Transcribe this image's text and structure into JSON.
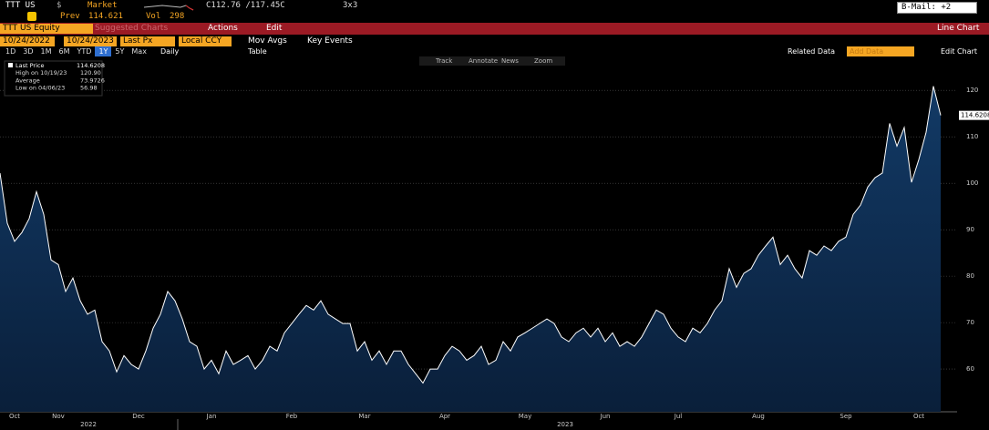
{
  "header": {
    "ticker": "TTT US",
    "currency": "$",
    "market": "Market",
    "quote": "C112.76 /117.45C",
    "size": "3x3",
    "mail": "B-Mail: +2",
    "prev_label": "Prev",
    "prev": "114.621",
    "vol_label": "Vol",
    "vol": "298"
  },
  "toolbar": {
    "security": "TTT US Equity",
    "suggested": "Suggested Charts",
    "actions": "Actions",
    "edit": "Edit",
    "chart_type": "Line Chart",
    "start": "10/24/2022",
    "end": "10/24/2023",
    "field": "Last Px",
    "ccy": "Local CCY",
    "mov_avgs": "Mov Avgs",
    "key_events": "Key Events",
    "periods": [
      "1D",
      "3D",
      "1M",
      "6M",
      "YTD",
      "1Y",
      "5Y",
      "Max"
    ],
    "frequency": "Daily",
    "table": "Table",
    "related": "Related Data",
    "add_data": "Add Data",
    "edit_chart": "Edit Chart",
    "tools": [
      "Track",
      "Annotate",
      "News",
      "Zoom"
    ]
  },
  "chart_data": {
    "type": "line",
    "categories": [
      null,
      null,
      "Oct",
      null,
      null,
      null,
      null,
      null,
      "Nov",
      null,
      null,
      null,
      null,
      null,
      null,
      null,
      null,
      null,
      null,
      "Dec",
      null,
      null,
      null,
      null,
      null,
      null,
      null,
      null,
      null,
      "Jan",
      null,
      null,
      null,
      null,
      null,
      null,
      null,
      null,
      null,
      null,
      "Feb",
      null,
      null,
      null,
      null,
      null,
      null,
      null,
      null,
      null,
      "Mar",
      null,
      null,
      null,
      null,
      null,
      null,
      null,
      null,
      null,
      null,
      "Apr",
      null,
      null,
      null,
      null,
      null,
      null,
      null,
      null,
      null,
      null,
      "May",
      null,
      null,
      null,
      null,
      null,
      null,
      null,
      null,
      null,
      null,
      "Jun",
      null,
      null,
      null,
      null,
      null,
      null,
      null,
      null,
      null,
      "Jul",
      null,
      null,
      null,
      null,
      null,
      null,
      null,
      null,
      null,
      null,
      "Aug",
      null,
      null,
      null,
      null,
      null,
      null,
      null,
      null,
      null,
      null,
      null,
      "Sep",
      null,
      null,
      null,
      null,
      null,
      null,
      null,
      null,
      null,
      "Oct",
      null,
      null,
      null
    ],
    "series": [
      {
        "name": "Last Price",
        "color": "#ffffff",
        "values": [
          102.2,
          91.4,
          87.5,
          89.4,
          92.4,
          98.2,
          93.3,
          83.5,
          82.5,
          76.7,
          79.6,
          74.7,
          71.8,
          72.7,
          65.9,
          63.9,
          59.4,
          62.9,
          61,
          60,
          63.9,
          68.8,
          71.8,
          76.7,
          74.7,
          70.8,
          65.9,
          64.9,
          60,
          61.9,
          59,
          63.9,
          61,
          61.9,
          62.9,
          60,
          61.9,
          64.9,
          63.9,
          67.8,
          69.8,
          71.8,
          73.7,
          72.7,
          74.7,
          71.8,
          70.8,
          69.8,
          69.8,
          63.9,
          65.9,
          61.9,
          63.9,
          61,
          63.9,
          63.9,
          61,
          59,
          56.98,
          60,
          60,
          62.9,
          64.9,
          63.9,
          61.9,
          62.9,
          64.9,
          61,
          61.9,
          65.9,
          63.9,
          66.9,
          67.8,
          68.8,
          69.8,
          70.8,
          69.8,
          66.9,
          65.9,
          67.8,
          68.8,
          66.9,
          68.8,
          65.9,
          67.8,
          64.9,
          65.9,
          64.9,
          66.9,
          69.8,
          72.7,
          71.8,
          68.8,
          66.9,
          65.9,
          68.8,
          67.8,
          69.8,
          72.7,
          74.7,
          81.6,
          77.6,
          80.6,
          81.6,
          84.5,
          86.5,
          88.4,
          82.5,
          84.5,
          81.6,
          79.6,
          85.5,
          84.5,
          86.5,
          85.5,
          87.5,
          88.4,
          93.3,
          95.3,
          99.2,
          101.2,
          102.2,
          112.9,
          108,
          112,
          100.2,
          105.1,
          111,
          120.9,
          114.6208
        ]
      }
    ],
    "stats": [
      {
        "label": "High on 10/19/23",
        "value": "120.90"
      },
      {
        "label": "Average",
        "value": "73.9726"
      },
      {
        "label": "Low on 04/06/23",
        "value": "56.98"
      }
    ],
    "years": [
      "2022",
      "2023"
    ],
    "ylim": [
      50.8,
      127.3
    ],
    "yticks": [
      60,
      70,
      80,
      90,
      100,
      110,
      120
    ],
    "grid": true
  }
}
